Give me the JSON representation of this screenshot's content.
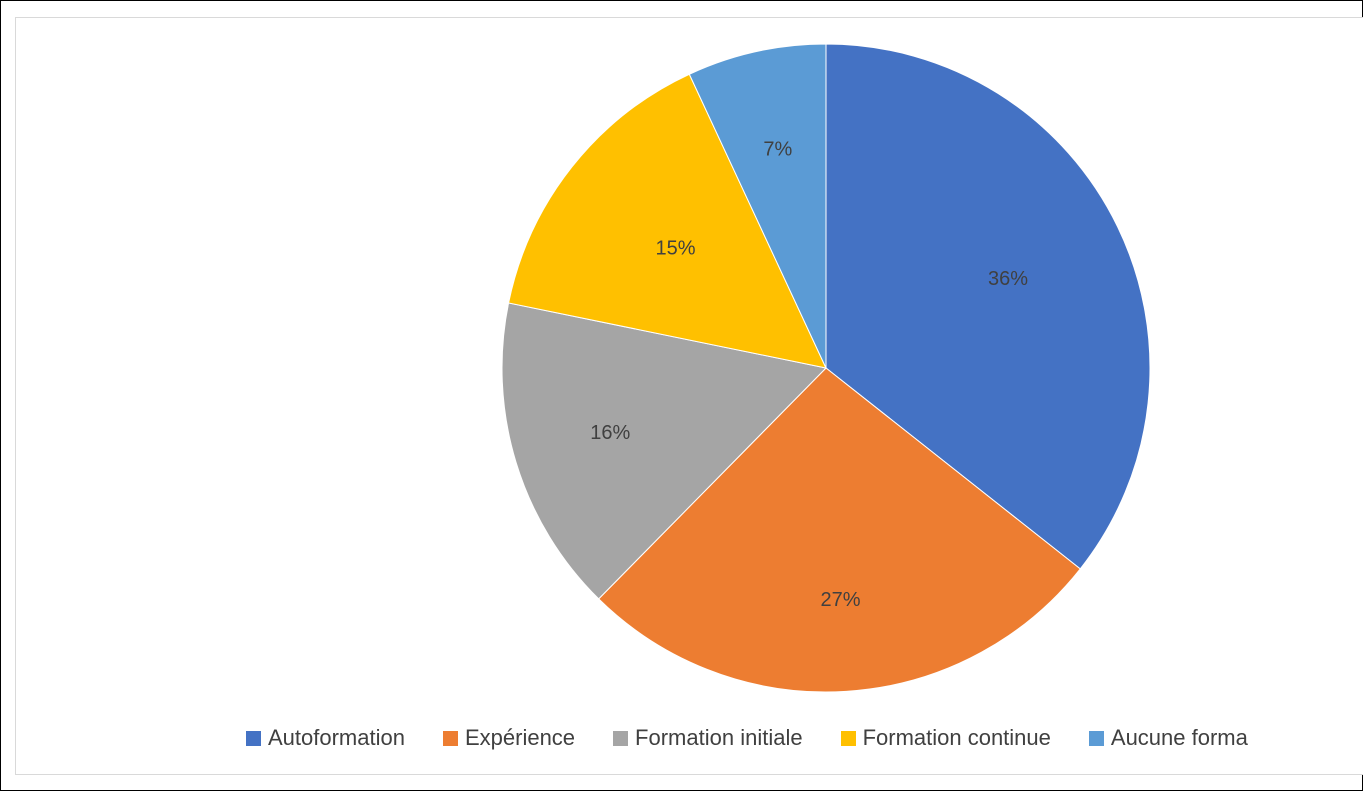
{
  "chart_data": {
    "type": "pie",
    "title": "",
    "series": [
      {
        "values": [
          36,
          27,
          16,
          15,
          7
        ]
      }
    ],
    "categories": [
      "Autoformation",
      "Expérience",
      "Formation initiale",
      "Formation continue",
      "Aucune forma"
    ],
    "data_labels": [
      "36%",
      "27%",
      "16%",
      "15%",
      "7%"
    ],
    "colors": [
      "#4472c4",
      "#ed7d31",
      "#a5a5a5",
      "#ffc000",
      "#5b9bd5"
    ],
    "legend_position": "bottom",
    "start_angle": "12 o'clock, clockwise"
  }
}
